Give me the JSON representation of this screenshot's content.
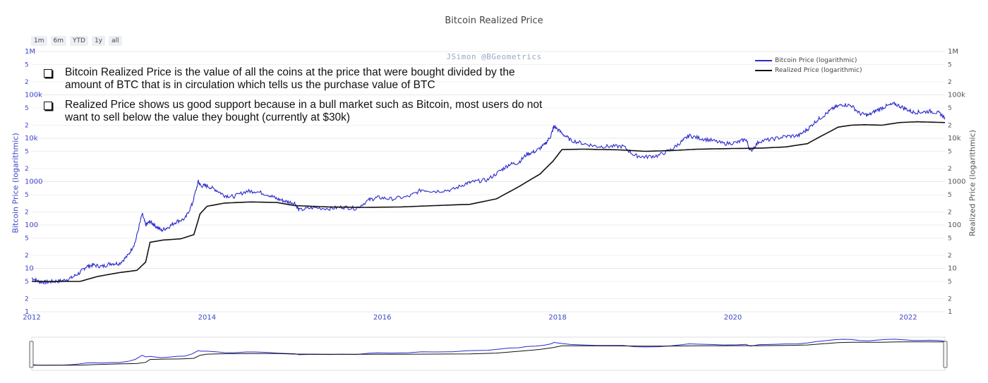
{
  "chart": {
    "title": "Bitcoin Realized Price",
    "watermark": "JSimon @BGeometrics",
    "range_buttons": [
      "1m",
      "6m",
      "YTD",
      "1y",
      "all"
    ]
  },
  "notes": [
    "Bitcoin Realized Price is the value of  all the coins at the price that were bought divided by the amount of  BTC that is in circulation which tells us the purchase value of  BTC",
    "Realized Price shows us good support because in a bull market such as Bitcoin, most users do not want to sell below the value they bought (currently at $30k)"
  ],
  "colors": {
    "price": "#2a2acc",
    "realized": "#111111",
    "axis_left": "#3c46c8",
    "axis_right": "#555555",
    "grid": "#e8e8e8"
  },
  "chart_data": {
    "type": "line",
    "title": "Bitcoin Realized Price",
    "xlabel": "",
    "ylabel": "Bitcoin Price (logarithmic)",
    "ylabel_right": "Realized Price (logarithmic)",
    "y_scale": "log",
    "ylim": [
      1,
      1000000
    ],
    "xlim": [
      2012.0,
      2022.42
    ],
    "x_ticks": [
      "2012",
      "2014",
      "2016",
      "2018",
      "2020",
      "2022"
    ],
    "y_ticks": [
      "1",
      "2",
      "5",
      "10",
      "2",
      "5",
      "100",
      "2",
      "5",
      "1000",
      "2",
      "5",
      "10k",
      "2",
      "5",
      "100k",
      "2",
      "5",
      "1M"
    ],
    "legend_position": "top-right",
    "grid": true,
    "series": [
      {
        "name": "Bitcoin Price (logarithmic)",
        "x": [
          2012.0,
          2012.08,
          2012.16,
          2012.25,
          2012.35,
          2012.45,
          2012.55,
          2012.62,
          2012.7,
          2012.8,
          2012.9,
          2013.0,
          2013.1,
          2013.18,
          2013.26,
          2013.3,
          2013.35,
          2013.4,
          2013.48,
          2013.56,
          2013.65,
          2013.75,
          2013.83,
          2013.9,
          2013.93,
          2014.0,
          2014.1,
          2014.2,
          2014.3,
          2014.45,
          2014.55,
          2014.7,
          2014.8,
          2014.9,
          2015.0,
          2015.05,
          2015.2,
          2015.4,
          2015.55,
          2015.7,
          2015.85,
          2015.95,
          2016.1,
          2016.3,
          2016.45,
          2016.6,
          2016.8,
          2016.95,
          2017.05,
          2017.2,
          2017.35,
          2017.45,
          2017.55,
          2017.65,
          2017.75,
          2017.85,
          2017.92,
          2017.96,
          2018.05,
          2018.15,
          2018.3,
          2018.45,
          2018.6,
          2018.75,
          2018.88,
          2019.0,
          2019.15,
          2019.3,
          2019.42,
          2019.5,
          2019.62,
          2019.75,
          2019.9,
          2020.05,
          2020.15,
          2020.2,
          2020.3,
          2020.45,
          2020.6,
          2020.75,
          2020.85,
          2020.95,
          2021.05,
          2021.15,
          2021.25,
          2021.35,
          2021.45,
          2021.55,
          2021.65,
          2021.75,
          2021.85,
          2021.95,
          2022.05,
          2022.15,
          2022.25,
          2022.35,
          2022.42
        ],
        "values": [
          6,
          5,
          4.8,
          5,
          5.2,
          6,
          8,
          11,
          12,
          11,
          13,
          13,
          20,
          40,
          180,
          100,
          120,
          100,
          75,
          90,
          120,
          140,
          300,
          1000,
          800,
          800,
          650,
          480,
          450,
          600,
          600,
          500,
          400,
          350,
          320,
          220,
          250,
          240,
          260,
          240,
          380,
          430,
          400,
          450,
          650,
          600,
          650,
          900,
          1000,
          1100,
          1800,
          2500,
          2700,
          4300,
          5000,
          7000,
          11000,
          19000,
          13000,
          9000,
          7500,
          6500,
          6500,
          6500,
          4000,
          3700,
          4000,
          5500,
          8500,
          11500,
          10000,
          9000,
          7500,
          8000,
          9500,
          5000,
          8500,
          9500,
          11000,
          11500,
          16000,
          25000,
          35000,
          50000,
          60000,
          57000,
          37000,
          34000,
          45000,
          55000,
          62000,
          50000,
          40000,
          40000,
          42000,
          38000,
          30000
        ]
      },
      {
        "name": "Realized Price (logarithmic)",
        "x": [
          2012.0,
          2012.3,
          2012.55,
          2012.75,
          2013.0,
          2013.2,
          2013.3,
          2013.35,
          2013.5,
          2013.7,
          2013.85,
          2013.92,
          2014.0,
          2014.2,
          2014.5,
          2014.8,
          2015.0,
          2015.4,
          2015.8,
          2016.2,
          2016.6,
          2017.0,
          2017.3,
          2017.55,
          2017.8,
          2017.95,
          2018.05,
          2018.3,
          2018.7,
          2019.0,
          2019.3,
          2019.6,
          2020.0,
          2020.3,
          2020.6,
          2020.85,
          2021.0,
          2021.1,
          2021.2,
          2021.35,
          2021.5,
          2021.7,
          2021.9,
          2022.1,
          2022.42
        ],
        "values": [
          5,
          5,
          5,
          6.5,
          8,
          9,
          14,
          40,
          45,
          48,
          60,
          180,
          270,
          320,
          340,
          330,
          280,
          260,
          255,
          260,
          280,
          300,
          400,
          750,
          1500,
          3000,
          5500,
          5600,
          5400,
          5000,
          5200,
          5600,
          5800,
          5900,
          6300,
          7500,
          11000,
          14000,
          18000,
          20000,
          20500,
          20000,
          23000,
          24000,
          23000
        ]
      }
    ]
  }
}
